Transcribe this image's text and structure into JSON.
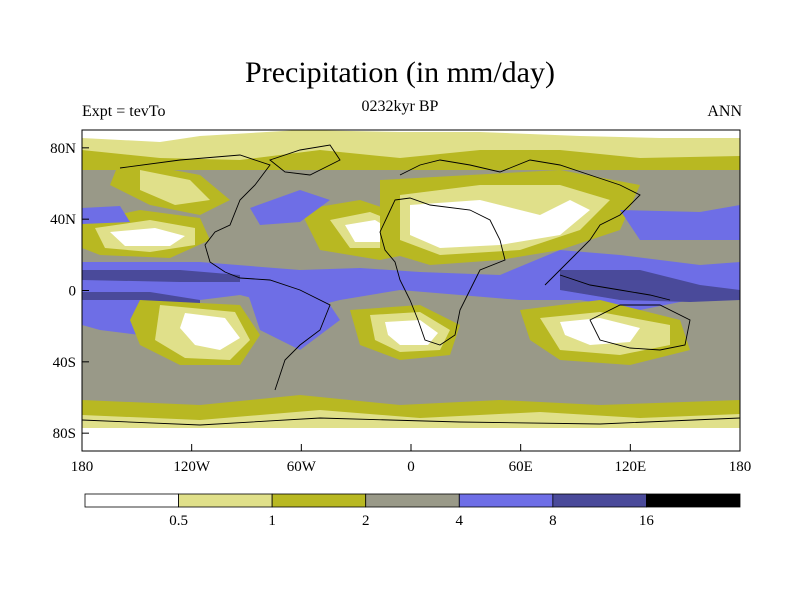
{
  "title": "Precipitation (in mm/day)",
  "left_label": "Expt = tevTo",
  "center_label": "0232kyr BP",
  "right_label": "ANN",
  "y_ticks": [
    {
      "label": "80N",
      "lat": 80
    },
    {
      "label": "40N",
      "lat": 40
    },
    {
      "label": "0",
      "lat": 0
    },
    {
      "label": "40S",
      "lat": -40
    },
    {
      "label": "80S",
      "lat": -80
    }
  ],
  "x_ticks": [
    {
      "label": "180",
      "lon": -180
    },
    {
      "label": "120W",
      "lon": -120
    },
    {
      "label": "60W",
      "lon": -60
    },
    {
      "label": "0",
      "lon": 0
    },
    {
      "label": "60E",
      "lon": 60
    },
    {
      "label": "120E",
      "lon": 120
    },
    {
      "label": "180",
      "lon": 180
    }
  ],
  "colorbar": {
    "levels": [
      "0.5",
      "1",
      "2",
      "4",
      "8",
      "16"
    ],
    "colors": [
      "#ffffff",
      "#e0e08a",
      "#b8b822",
      "#999988",
      "#6e6ee6",
      "#4a4a9a",
      "#000000"
    ]
  }
}
